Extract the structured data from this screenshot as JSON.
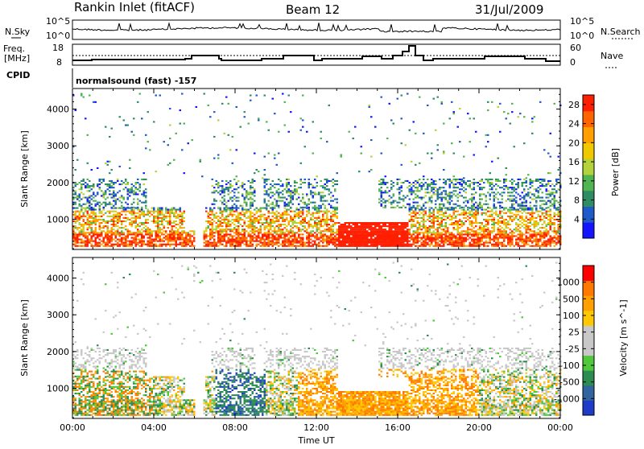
{
  "header": {
    "station": "Rankin Inlet (fitACF)",
    "beam": "Beam 12",
    "date": "31/Jul/2009"
  },
  "strip_noise": {
    "left_label": "N.Sky",
    "left_ticks": [
      "10^5",
      "10^0"
    ],
    "right_label": "N.Search",
    "right_ticks": [
      "10^5",
      "10^0"
    ]
  },
  "strip_freq": {
    "left_label_1": "Freq.",
    "left_label_2": "[MHz]",
    "left_ticks": [
      "18",
      "8"
    ],
    "right_label": "Nave",
    "right_ticks": [
      "60",
      "0"
    ]
  },
  "cpid": {
    "label": "CPID",
    "value": "normalsound (fast) -157"
  },
  "chart_data": [
    {
      "type": "heatmap",
      "title": "",
      "ylabel": "Slant Range [km]",
      "xlabel": "",
      "x_ticks": [
        "00:00",
        "04:00",
        "08:00",
        "12:00",
        "16:00",
        "20:00",
        "00:00"
      ],
      "xlim_hours": [
        0,
        24
      ],
      "y_ticks": [
        1000,
        2000,
        3000,
        4000
      ],
      "ylim": [
        180,
        4560
      ],
      "colorbar": {
        "label": "Power [dB]",
        "ticks": [
          4,
          8,
          12,
          16,
          20,
          24,
          28
        ],
        "range": [
          0,
          30
        ],
        "colors": [
          "#1414ff",
          "#1e5ac8",
          "#2d8c64",
          "#50b450",
          "#b4d23c",
          "#f0c800",
          "#ffa000",
          "#ff6400",
          "#ff1e00"
        ]
      }
    },
    {
      "type": "heatmap",
      "title": "",
      "ylabel": "Slant Range [km]",
      "xlabel": "Time UT",
      "x_ticks": [
        "00:00",
        "04:00",
        "08:00",
        "12:00",
        "16:00",
        "20:00",
        "00:00"
      ],
      "xlim_hours": [
        0,
        24
      ],
      "y_ticks": [
        1000,
        2000,
        3000,
        4000
      ],
      "ylim": [
        180,
        4560
      ],
      "colorbar": {
        "label": "Velocity [m s^-1]",
        "ticks": [
          "1000",
          "500",
          "100",
          "25",
          "-25",
          "-100",
          "-500",
          "-1000"
        ],
        "colors": [
          "#1e3cc8",
          "#3264a0",
          "#2d8c50",
          "#50c83c",
          "#c8c8c8",
          "#c8c8c8",
          "#ffc800",
          "#ffa000",
          "#ff7800",
          "#ff0000"
        ]
      }
    }
  ]
}
